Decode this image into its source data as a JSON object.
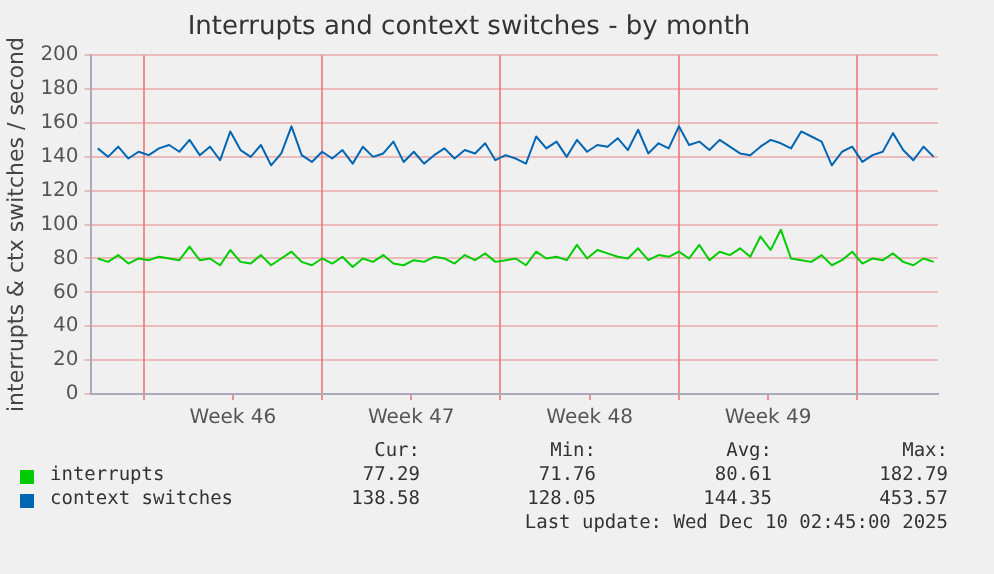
{
  "chart_data": {
    "type": "line",
    "title": "Interrupts and context switches - by month",
    "ylabel": "interrupts & ctx switches / second",
    "x": [
      "2025-11-08T04:48",
      "2025-11-08T14:24",
      "2025-11-09T00:00",
      "2025-11-09T09:36",
      "2025-11-09T19:12",
      "2025-11-10T04:48",
      "2025-11-10T14:24",
      "2025-11-11T00:00",
      "2025-11-11T09:36",
      "2025-11-11T19:12",
      "2025-11-12T04:48",
      "2025-11-12T14:24",
      "2025-11-13T00:00",
      "2025-11-13T09:36",
      "2025-11-13T19:12",
      "2025-11-14T04:48",
      "2025-11-14T14:24",
      "2025-11-15T00:00",
      "2025-11-15T09:36",
      "2025-11-15T19:12",
      "2025-11-16T04:48",
      "2025-11-16T14:24",
      "2025-11-17T00:00",
      "2025-11-17T09:36",
      "2025-11-17T19:12",
      "2025-11-18T04:48",
      "2025-11-18T14:24",
      "2025-11-19T00:00",
      "2025-11-19T09:36",
      "2025-11-19T19:12",
      "2025-11-20T04:48",
      "2025-11-20T14:24",
      "2025-11-21T00:00",
      "2025-11-21T09:36",
      "2025-11-21T19:12",
      "2025-11-22T04:48",
      "2025-11-22T14:24",
      "2025-11-23T00:00",
      "2025-11-23T09:36",
      "2025-11-23T19:12",
      "2025-11-24T04:48",
      "2025-11-24T14:24",
      "2025-11-25T00:00",
      "2025-11-25T09:36",
      "2025-11-25T19:12",
      "2025-11-26T04:48",
      "2025-11-26T14:24",
      "2025-11-27T00:00",
      "2025-11-27T09:36",
      "2025-11-27T19:12",
      "2025-11-28T04:48",
      "2025-11-28T14:24",
      "2025-11-29T00:00",
      "2025-11-29T09:36",
      "2025-11-29T19:12",
      "2025-11-30T04:48",
      "2025-11-30T14:24",
      "2025-12-01T00:00",
      "2025-12-01T09:36",
      "2025-12-01T19:12",
      "2025-12-02T04:48",
      "2025-12-02T14:24",
      "2025-12-03T00:00",
      "2025-12-03T09:36",
      "2025-12-03T19:12",
      "2025-12-04T04:48",
      "2025-12-04T14:24",
      "2025-12-05T00:00",
      "2025-12-05T09:36",
      "2025-12-05T19:12",
      "2025-12-06T04:48",
      "2025-12-06T14:24",
      "2025-12-07T00:00",
      "2025-12-07T09:36",
      "2025-12-07T19:12",
      "2025-12-08T04:48",
      "2025-12-08T14:24",
      "2025-12-09T00:00",
      "2025-12-09T09:36",
      "2025-12-09T19:12",
      "2025-12-10T04:48",
      "2025-12-10T14:24",
      "2025-12-11T00:00"
    ],
    "series": [
      {
        "name": "interrupts",
        "color": "#00cc00",
        "values": [
          80,
          78,
          82,
          77,
          80,
          79,
          81,
          80,
          79,
          87,
          79,
          80,
          76,
          85,
          78,
          77,
          82,
          76,
          80,
          84,
          78,
          76,
          80,
          77,
          81,
          75,
          80,
          78,
          82,
          77,
          76,
          79,
          78,
          81,
          80,
          77,
          82,
          79,
          83,
          78,
          79,
          80,
          76,
          84,
          80,
          81,
          79,
          88,
          80,
          85,
          83,
          81,
          80,
          86,
          79,
          82,
          81,
          84,
          80,
          88,
          79,
          84,
          82,
          86,
          81,
          93,
          85,
          97,
          80,
          79,
          78,
          82,
          76,
          79,
          84,
          77,
          80,
          79,
          83,
          78,
          76,
          80,
          78
        ]
      },
      {
        "name": "context switches",
        "color": "#0066b3",
        "values": [
          145,
          140,
          146,
          139,
          143,
          141,
          145,
          147,
          143,
          150,
          141,
          146,
          138,
          155,
          144,
          140,
          147,
          135,
          142,
          158,
          141,
          137,
          143,
          139,
          144,
          136,
          146,
          140,
          142,
          149,
          137,
          143,
          136,
          141,
          145,
          139,
          144,
          142,
          148,
          138,
          141,
          139,
          136,
          152,
          145,
          149,
          140,
          150,
          143,
          147,
          146,
          151,
          144,
          156,
          142,
          148,
          145,
          158,
          147,
          149,
          144,
          150,
          146,
          142,
          141,
          146,
          150,
          148,
          145,
          155,
          152,
          149,
          135,
          143,
          146,
          137,
          141,
          143,
          154,
          144,
          138,
          146,
          140
        ]
      }
    ],
    "xlim": [
      "2025-11-07T22:00",
      "2025-12-11T04:00"
    ],
    "xticks": [
      {
        "value": "2025-11-10T00:00",
        "label": null
      },
      {
        "value": "2025-11-13T12:00",
        "label": "Week 46"
      },
      {
        "value": "2025-11-17T00:00",
        "label": null
      },
      {
        "value": "2025-11-20T12:00",
        "label": "Week 47"
      },
      {
        "value": "2025-11-24T00:00",
        "label": null
      },
      {
        "value": "2025-11-27T12:00",
        "label": "Week 48"
      },
      {
        "value": "2025-12-01T00:00",
        "label": null
      },
      {
        "value": "2025-12-04T12:00",
        "label": "Week 49"
      },
      {
        "value": "2025-12-08T00:00",
        "label": null
      }
    ],
    "ylim": [
      0,
      200
    ],
    "yticks": [
      0,
      20,
      40,
      60,
      80,
      100,
      120,
      140,
      160,
      180,
      200
    ],
    "grid": true,
    "legend": "bottom",
    "marker": "none",
    "line_style": "solid",
    "annotations": [
      "Cur:",
      "Min:",
      "Avg:",
      "Max:",
      "77.29",
      "71.76",
      "80.61",
      "182.79",
      "138.58",
      "128.05",
      "144.35",
      "453.57",
      "Last update: Wed Dec 10 02:45:00 2025"
    ]
  }
}
